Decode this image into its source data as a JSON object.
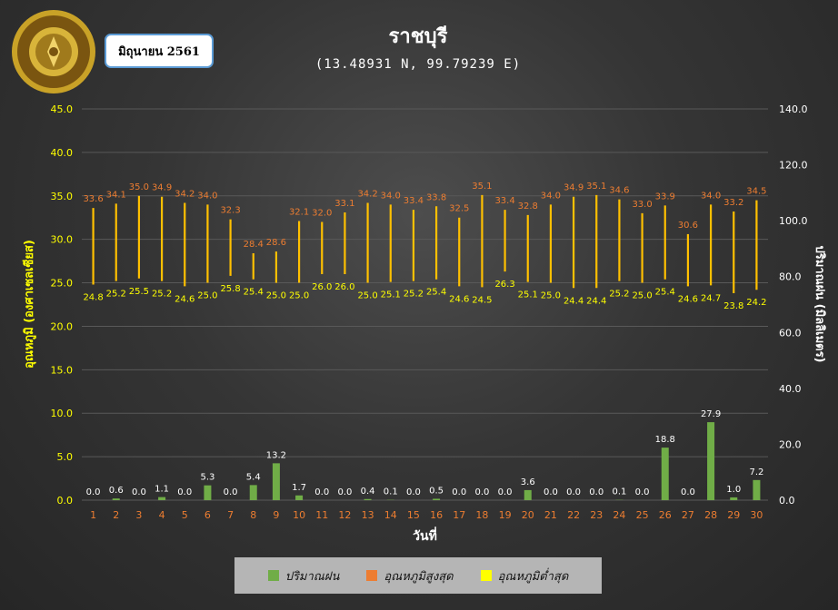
{
  "header": {
    "title": "ราชบุรี",
    "coords": "(13.48931 N, 99.79239 E)",
    "month": "มิถุนายน 2561",
    "logo_text": "กรมอุตุนิยมวิทยา · METEOROLOGICAL DEPARTMENT"
  },
  "colors": {
    "rain": "#70ad47",
    "tmax": "#ed7d31",
    "tmin": "#ffff00",
    "range_line": "#ffc000",
    "axis_left": "#ffff00",
    "axis_right": "#ffffff",
    "day_labels": "#ed7d31",
    "gridline": "#595959"
  },
  "chart_data": {
    "type": "bar",
    "title": "ราชบุรี",
    "subtitle": "(13.48931 N, 99.79239 E)",
    "xlabel": "วันที่",
    "ylabel_left": "อุณหภูมิ (องศาเซลเซียส)",
    "ylabel_right": "ปริมาณฝน (มิลลิเมตร)",
    "ylim_left": [
      0,
      45
    ],
    "ylim_right": [
      0,
      140
    ],
    "yticks_left": [
      "0.0",
      "5.0",
      "10.0",
      "15.0",
      "20.0",
      "25.0",
      "30.0",
      "35.0",
      "40.0",
      "45.0"
    ],
    "yticks_right": [
      "0.0",
      "20.0",
      "40.0",
      "60.0",
      "80.0",
      "100.0",
      "120.0",
      "140.0"
    ],
    "grid": true,
    "legend_position": "bottom",
    "categories": [
      "1",
      "2",
      "3",
      "4",
      "5",
      "6",
      "7",
      "8",
      "9",
      "10",
      "11",
      "12",
      "13",
      "14",
      "15",
      "16",
      "17",
      "18",
      "19",
      "20",
      "21",
      "22",
      "23",
      "24",
      "25",
      "26",
      "27",
      "28",
      "29",
      "30"
    ],
    "series": [
      {
        "name": "ปริมาณฝน",
        "axis": "right",
        "kind": "bar",
        "values": [
          0.0,
          0.6,
          0.0,
          1.1,
          0.0,
          5.3,
          0.0,
          5.4,
          13.2,
          1.7,
          0.0,
          0.0,
          0.4,
          0.1,
          0.0,
          0.5,
          0.0,
          0.0,
          0.0,
          3.6,
          0.0,
          0.0,
          0.0,
          0.1,
          0.0,
          18.8,
          0.0,
          27.9,
          1.0,
          7.2
        ]
      },
      {
        "name": "อุณหภูมิสูงสุด",
        "axis": "left",
        "kind": "high",
        "values": [
          33.6,
          34.1,
          35.0,
          34.9,
          34.2,
          34.0,
          32.3,
          28.4,
          28.6,
          32.1,
          32.0,
          33.1,
          34.2,
          34.0,
          33.4,
          33.8,
          32.5,
          35.1,
          33.4,
          32.8,
          34.0,
          34.9,
          35.1,
          34.6,
          33.0,
          33.9,
          30.6,
          34.0,
          33.2,
          34.5
        ]
      },
      {
        "name": "อุณหภูมิต่ำสุด",
        "axis": "left",
        "kind": "low",
        "values": [
          24.8,
          25.2,
          25.5,
          25.2,
          24.6,
          25.0,
          25.8,
          25.4,
          25.0,
          25.0,
          26.0,
          26.0,
          25.0,
          25.1,
          25.2,
          25.4,
          24.6,
          24.5,
          26.3,
          25.1,
          25.0,
          24.4,
          24.4,
          25.2,
          25.0,
          25.4,
          24.6,
          24.7,
          23.8,
          24.2
        ]
      }
    ]
  }
}
